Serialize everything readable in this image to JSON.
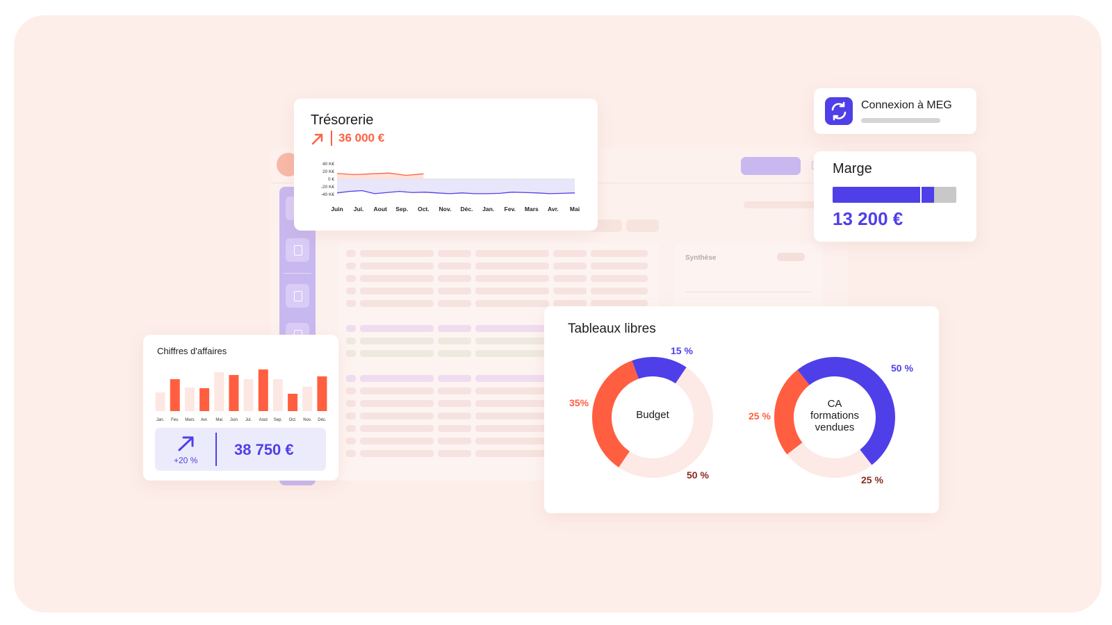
{
  "background_app": {
    "synthese_label": "Synthèse"
  },
  "tresorerie": {
    "title": "Trésorerie",
    "value": "36 000 €",
    "trend_icon": "arrow-up-right-icon",
    "chart_data": {
      "type": "area",
      "x_labels": [
        "Juin",
        "Jui.",
        "Aout",
        "Sep.",
        "Oct.",
        "Nov.",
        "Déc.",
        "Jan.",
        "Fev.",
        "Mars",
        "Avr.",
        "Mai"
      ],
      "y_tick_labels": [
        "40 K€",
        "20 K€",
        "0 €",
        "-20 K€",
        "-40 K€"
      ],
      "ylim": [
        -40,
        40
      ],
      "series": [
        {
          "color": "#ff5f40",
          "values": [
            15,
            12,
            14,
            16,
            10,
            14
          ]
        },
        {
          "color": "#4f3fe8",
          "values": [
            -36,
            -32,
            -30,
            -38,
            -35,
            -32,
            -35,
            -34,
            -36,
            -38,
            -36,
            -38,
            -38,
            -37,
            -34,
            -35,
            -36,
            -38,
            -37,
            -36
          ]
        }
      ]
    }
  },
  "connexion": {
    "label": "Connexion à MEG",
    "icon": "sync-icon",
    "progress": 1.0
  },
  "marge": {
    "title": "Marge",
    "value": "13 200 €",
    "progress": 0.82,
    "marker": 0.71,
    "colors": {
      "fill": "#4f3fe8",
      "track": "#c8c8c8"
    }
  },
  "chiffres_affaires": {
    "title": "Chiffres d'affaires",
    "pct": "+20 %",
    "value": "38 750 €",
    "trend_icon": "arrow-up-right-icon",
    "chart_data": {
      "type": "bar",
      "categories": [
        "Jan.",
        "Fev.",
        "Mars",
        "Avr.",
        "Mai",
        "Juin",
        "Jul.",
        "Aout",
        "Sep.",
        "Oct.",
        "Nov.",
        "Déc."
      ],
      "series": [
        {
          "color": "#ff5f40",
          "values": [
            0,
            46,
            0,
            33,
            0,
            52,
            0,
            60,
            0,
            25,
            0,
            50
          ]
        },
        {
          "color": "#fde7e3",
          "values": [
            27,
            0,
            34,
            0,
            56,
            0,
            46,
            0,
            46,
            0,
            35,
            0
          ]
        }
      ]
    }
  },
  "tableaux_libres": {
    "title": "Tableaux libres",
    "donuts": [
      {
        "center": "Budget",
        "chart_data": {
          "type": "pie",
          "slices": [
            {
              "label": "15 %",
              "value": 15,
              "color": "#4f3fe8"
            },
            {
              "label": "50 %",
              "value": 50,
              "color": "#fde9e5"
            },
            {
              "label": "35%",
              "value": 35,
              "color": "#ff5f40"
            }
          ]
        }
      },
      {
        "center": "CA formations vendues",
        "center_lines": [
          "CA",
          "formations",
          "vendues"
        ],
        "chart_data": {
          "type": "pie",
          "slices": [
            {
              "label": "50 %",
              "value": 50,
              "color": "#4f3fe8"
            },
            {
              "label": "25 %",
              "value": 25,
              "color": "#fde9e5"
            },
            {
              "label": "25 %",
              "value": 25,
              "color": "#ff5f40"
            }
          ]
        }
      }
    ]
  }
}
